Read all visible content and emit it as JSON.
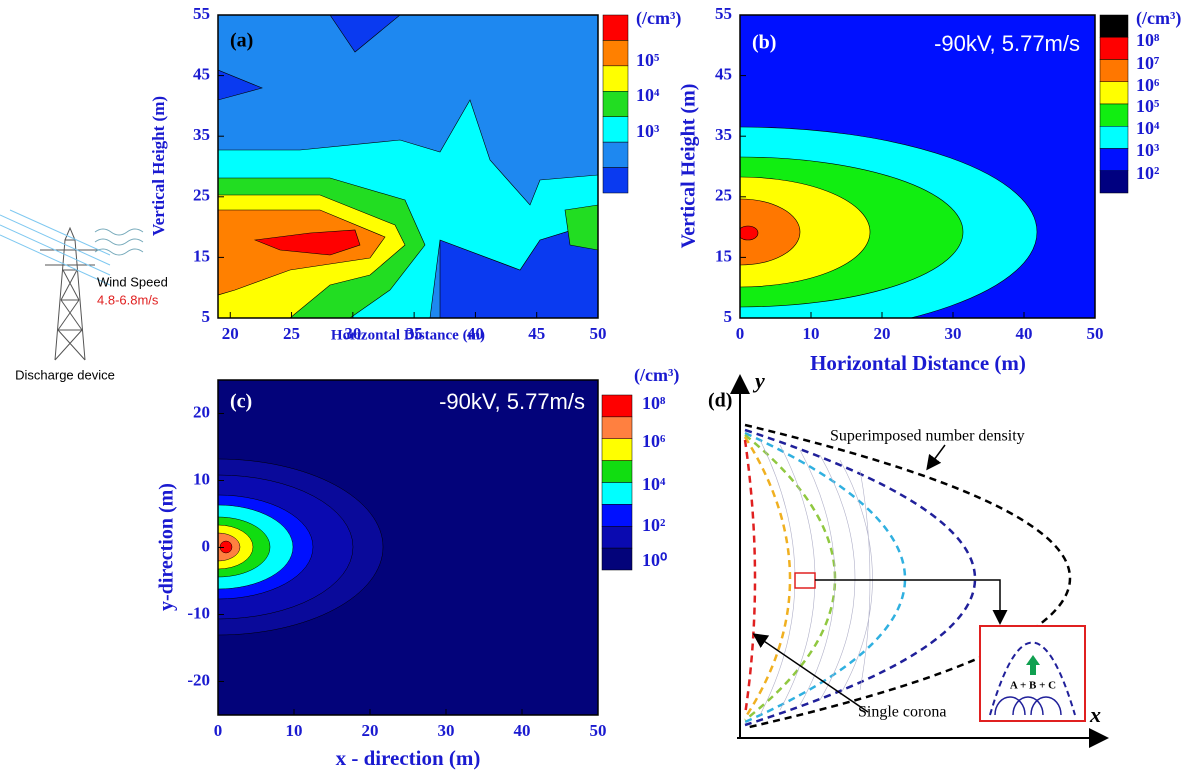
{
  "inset": {
    "wind_label": "Wind Speed",
    "wind_speed": "4.8-6.8m/s",
    "device_label": "Discharge device"
  },
  "panels": [
    {
      "label": "(a)",
      "x_label": "Horizontal Distance (m)",
      "y_label": "Vertical Height (m)",
      "xlim": [
        19,
        50
      ],
      "ylim": [
        5,
        55
      ],
      "xticks": [
        20,
        25,
        30,
        35,
        40,
        45,
        50
      ],
      "yticks": [
        5,
        15,
        25,
        35,
        45,
        55
      ],
      "colorbar": {
        "unit": "(/cm³)",
        "colors": [
          "#ff0000",
          "#ff8000",
          "#ffff00",
          "#22dd22",
          "#00ffff",
          "#1e88f0",
          "#0a3af0"
        ],
        "labels": [
          "10⁵",
          "10⁴",
          "10³"
        ]
      }
    },
    {
      "label": "(b)",
      "annotation": "-90kV, 5.77m/s",
      "x_label": "Horizontal Distance (m)",
      "y_label": "Vertical Height (m)",
      "xlim": [
        0,
        50
      ],
      "ylim": [
        5,
        55
      ],
      "xticks": [
        0,
        10,
        20,
        30,
        40,
        50
      ],
      "yticks": [
        5,
        15,
        25,
        35,
        45,
        55
      ],
      "colorbar": {
        "unit": "(/cm³)",
        "colors": [
          "#000000",
          "#ff0000",
          "#ff7700",
          "#ffff00",
          "#11ee11",
          "#00ffff",
          "#0010ff",
          "#000080"
        ],
        "labels": [
          "10⁸",
          "10⁷",
          "10⁶",
          "10⁵",
          "10⁴",
          "10³",
          "10²"
        ]
      }
    },
    {
      "label": "(c)",
      "annotation": "-90kV, 5.77m/s",
      "x_label": "x - direction (m)",
      "y_label": "y-direction (m)",
      "xlim": [
        0,
        50
      ],
      "ylim": [
        -25,
        25
      ],
      "xticks": [
        0,
        10,
        20,
        30,
        40,
        50
      ],
      "yticks": [
        -20,
        -10,
        0,
        10,
        20
      ],
      "colorbar": {
        "unit": "(/cm³)",
        "colors": [
          "#ff0000",
          "#ff8040",
          "#ffff00",
          "#11dd11",
          "#00ffff",
          "#0010ff",
          "#0a0ab0",
          "#03037a"
        ],
        "labels": [
          "10⁸",
          "10⁶",
          "10⁴",
          "10²",
          "10⁰"
        ]
      }
    }
  ],
  "diagram": {
    "label": "(d)",
    "x_axis": "x",
    "y_axis": "y",
    "superimposed": "Superimposed number density",
    "single": "Single corona",
    "sum": "A + B + C"
  }
}
